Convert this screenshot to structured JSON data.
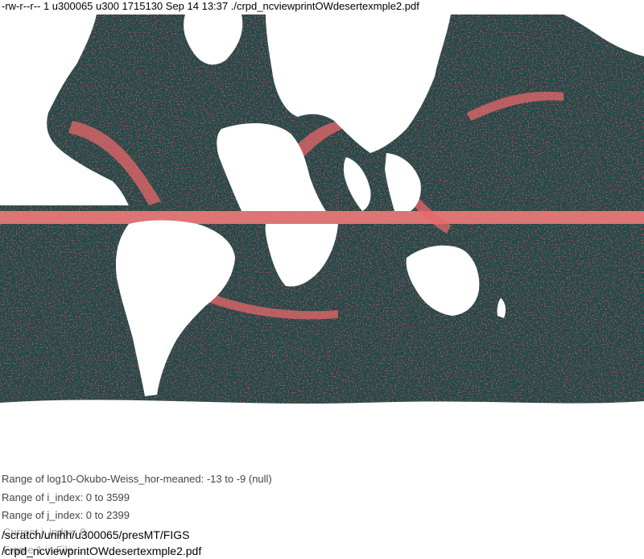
{
  "header": {
    "file_listing": "-rw-r--r-- 1 u300065 u300 1715130 Sep 14 13:37 ./crpd_ncviewprintOWdesertexmple2.pdf"
  },
  "map": {
    "colors": {
      "ocean_dark": "#1f4a4a",
      "ocean_texture": "#7a1418",
      "eddy_high": "#e8676a",
      "equator_band": "#ef7a7a",
      "land": "#ffffff"
    }
  },
  "info": {
    "lines": [
      "Range of log10-Okubo-Weiss_hor-meaned: -13 to -9 (null)",
      "Range of i_index: 0 to 3599",
      "Range of j_index: 0 to 2399"
    ],
    "obscured_lines": [
      "Current i_index: 0",
      "Frame 1 in File ..."
    ]
  },
  "footer": {
    "path": "/scratch/unihh/u300065/presMT/FIGS",
    "file": "/crpd_ncviewprintOWdesertexmple2.pdf"
  }
}
